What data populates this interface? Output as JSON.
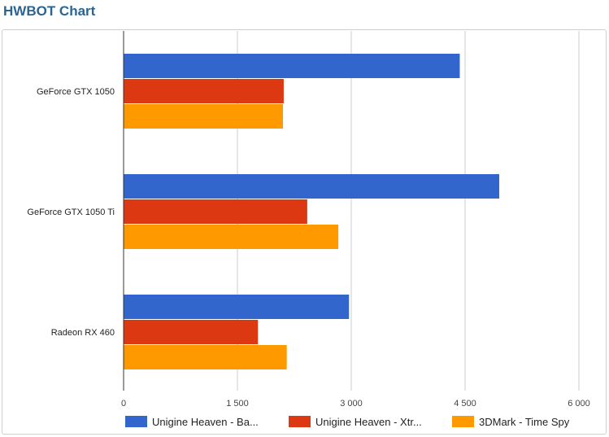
{
  "page": {
    "title": "HWBOT Chart"
  },
  "chart_data": {
    "type": "bar",
    "orientation": "horizontal",
    "categories": [
      "GeForce GTX 1050",
      "GeForce GTX 1050 Ti",
      "Radeon RX 460"
    ],
    "series": [
      {
        "name": "Unigine Heaven - Ba...",
        "color": "#3366cc",
        "values": [
          4430,
          4950,
          2970
        ]
      },
      {
        "name": "Unigine Heaven - Xtr...",
        "color": "#dc3912",
        "values": [
          2110,
          2420,
          1770
        ]
      },
      {
        "name": "3DMark - Time Spy",
        "color": "#ff9900",
        "values": [
          2100,
          2830,
          2150
        ]
      }
    ],
    "xlim": [
      0,
      6000
    ],
    "ticks": [
      {
        "value": 0,
        "label": "0"
      },
      {
        "value": 1500,
        "label": "1 500"
      },
      {
        "value": 3000,
        "label": "3 000"
      },
      {
        "value": 4500,
        "label": "4 500"
      },
      {
        "value": 6000,
        "label": "6 000"
      }
    ],
    "grid": true,
    "legend_position": "bottom"
  }
}
